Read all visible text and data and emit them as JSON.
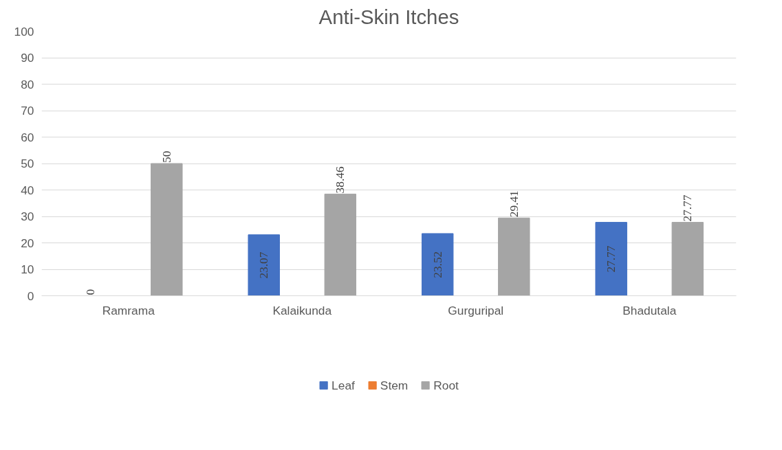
{
  "chart_data": {
    "type": "bar",
    "title": "Anti-Skin Itches",
    "categories": [
      "Ramrama",
      "Kalaikunda",
      "Gurguripal",
      "Bhadutala"
    ],
    "series": [
      {
        "name": "Leaf",
        "color": "#4472c4",
        "values": [
          0,
          23.07,
          23.52,
          27.77
        ]
      },
      {
        "name": "Stem",
        "color": "#ed7d31",
        "values": [
          null,
          null,
          null,
          null
        ]
      },
      {
        "name": "Root",
        "color": "#a5a5a5",
        "values": [
          50,
          38.46,
          29.41,
          27.77
        ]
      }
    ],
    "ylim": [
      0,
      100
    ],
    "yticks": [
      0,
      10,
      20,
      30,
      40,
      50,
      60,
      70,
      80,
      90,
      100
    ],
    "grid": "y",
    "legend": "bottom",
    "data_labels": true
  }
}
